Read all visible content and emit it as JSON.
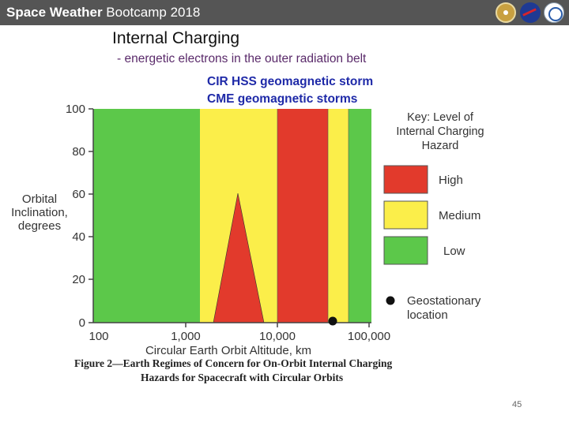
{
  "header": {
    "title_bold": "Space Weather",
    "title_rest": " Bootcamp 2018",
    "logos": [
      "logo-icon",
      "nasa-logo-icon",
      "ccmc-logo-icon"
    ]
  },
  "slide": {
    "title": "Internal Charging",
    "subtitle": "- energetic electrons in the outer radiation belt",
    "storm_lines": [
      "CIR HSS geomagnetic storm",
      "CME geomagnetic storms"
    ]
  },
  "figure": {
    "y_axis_label": [
      "Orbital",
      "Inclination,",
      "degrees"
    ],
    "x_axis_label": "Circular Earth Orbit Altitude, km",
    "y_ticks": [
      "0",
      "20",
      "40",
      "60",
      "80",
      "100"
    ],
    "x_ticks": [
      "100",
      "1,000",
      "10,000",
      "100,000"
    ],
    "key_title": [
      "Key:  Level of",
      "Internal Charging",
      "Hazard"
    ],
    "legend": [
      {
        "label": "High",
        "color": "#e23a2c"
      },
      {
        "label": "Medium",
        "color": "#fbee4a"
      },
      {
        "label": "Low",
        "color": "#5cc84a"
      }
    ],
    "geo_label": [
      "Geostationary",
      "location"
    ],
    "caption_line1": "Figure 2—Earth Regimes of Concern for On-Orbit Internal Charging",
    "caption_line2": "Hazards for Spacecraft with Circular Orbits"
  },
  "page_number": "45"
}
